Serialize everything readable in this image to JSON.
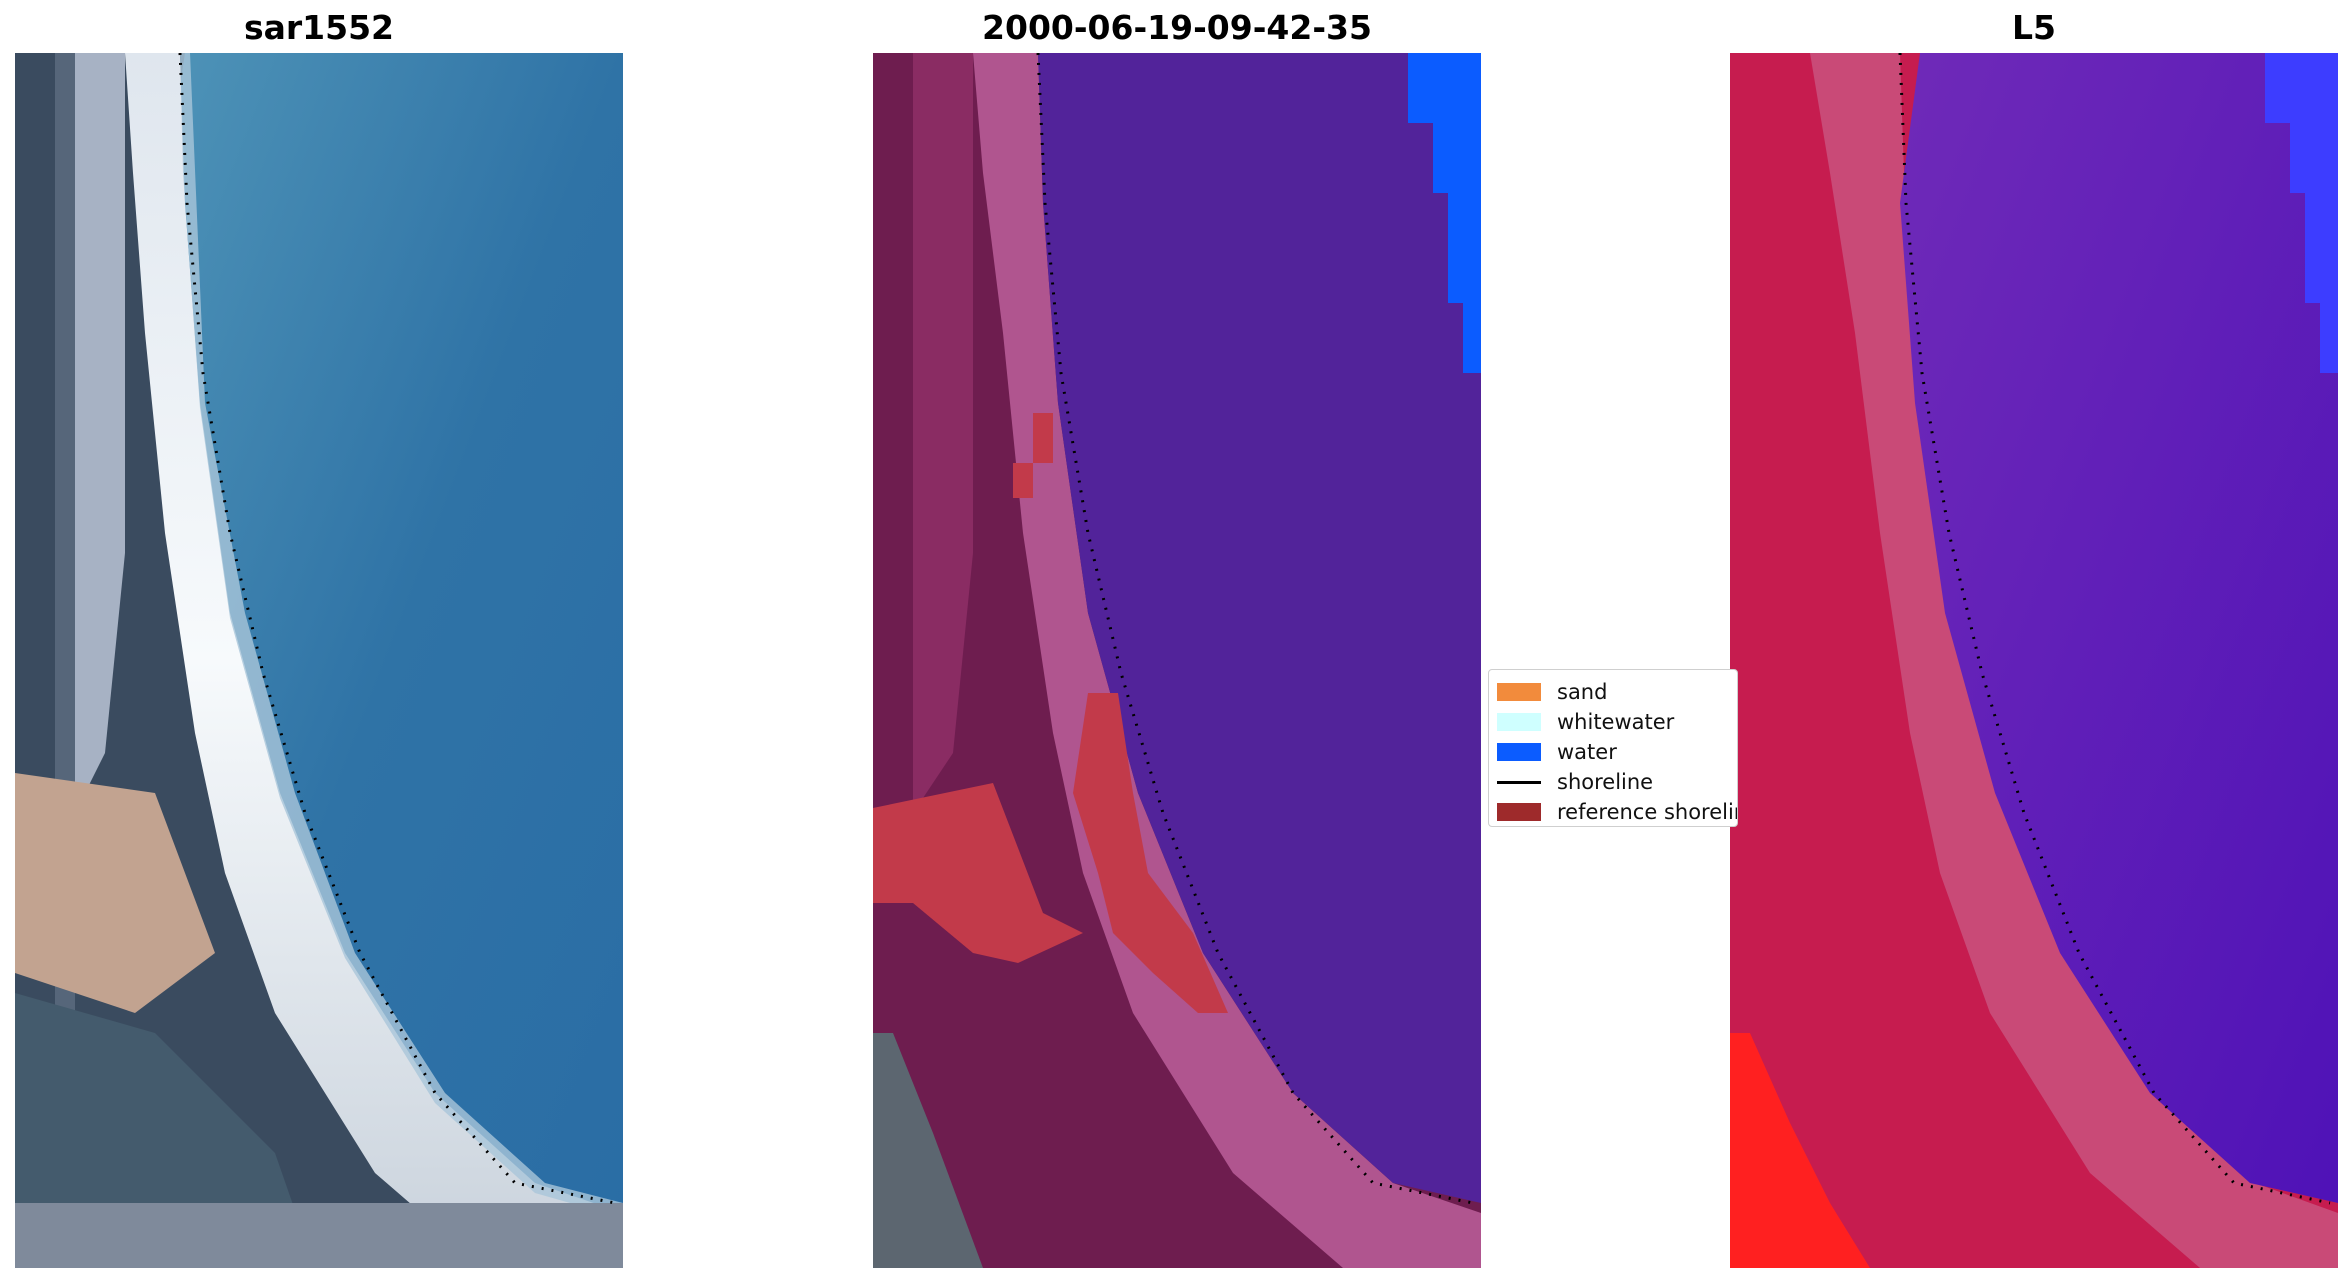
{
  "panels": [
    {
      "title": "sar1552"
    },
    {
      "title": "2000-06-19-09-42-35"
    },
    {
      "title": "L5"
    }
  ],
  "legend": {
    "items": [
      {
        "label": "sand",
        "color": "#f28b3c"
      },
      {
        "label": "whitewater",
        "color": "#cfffff"
      },
      {
        "label": "water",
        "color": "#0b5cff"
      },
      {
        "label": "shoreline",
        "color": "#000000"
      },
      {
        "label": "reference shoreline",
        "color": "#9e2a2b"
      }
    ]
  },
  "colors": {
    "rgb_ocean": "#3178ab",
    "rgb_land": "#4a5a6d",
    "rgb_sand": "#c8a890",
    "rgb_surf": "#f2f6f8",
    "class_water": "#52239a",
    "class_beach": "#b0558f",
    "class_land": "#6e1d4f",
    "class_red": "#c23a4a",
    "class_blue": "#0b5cff",
    "mndwi_water": "#6a1fb0",
    "mndwi_land": "#c61c4f",
    "mndwi_hot": "#ff2020",
    "mndwi_blue": "#3d3dff"
  }
}
